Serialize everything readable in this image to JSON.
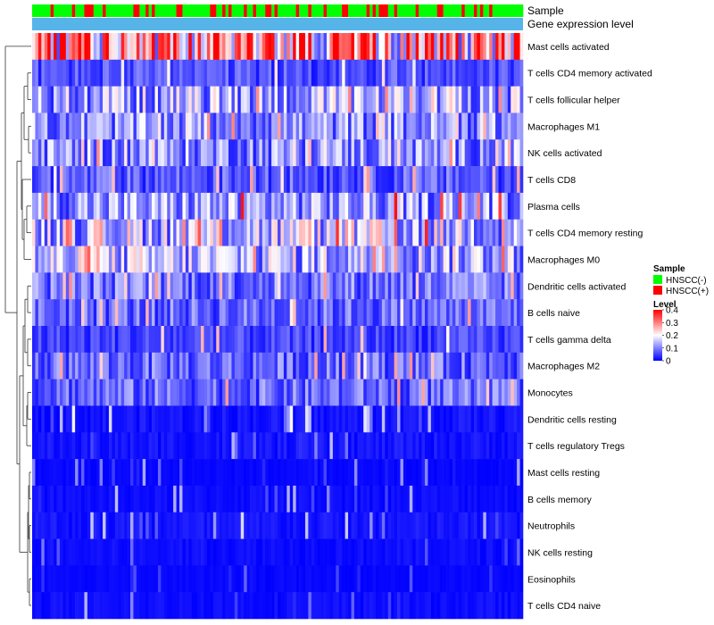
{
  "chart_data": {
    "type": "heatmap",
    "title": "",
    "n_samples": 160,
    "annotation_rows": [
      {
        "name": "sample-annotation",
        "label": "Sample"
      },
      {
        "name": "expression-annotation",
        "label": "Gene expression level"
      }
    ],
    "row_labels": [
      "Mast cells activated",
      "T cells CD4 memory activated",
      "T cells follicular helper",
      "Macrophages M1",
      "NK cells activated",
      "T cells CD8",
      "Plasma cells",
      "T cells CD4 memory resting",
      "Macrophages M0",
      "Dendritic cells activated",
      "B cells naive",
      "T cells gamma delta",
      "Macrophages M2",
      "Monocytes",
      "Dendritic cells resting",
      "T cells regulatory  Tregs",
      "Mast cells resting",
      "B cells memory",
      "Neutrophils",
      "NK cells resting",
      "Eosinophils",
      "T cells CD4 naive"
    ],
    "row_mean_levels": [
      0.28,
      0.06,
      0.13,
      0.11,
      0.11,
      0.07,
      0.12,
      0.15,
      0.14,
      0.09,
      0.08,
      0.05,
      0.08,
      0.08,
      0.03,
      0.03,
      0.01,
      0.02,
      0.03,
      0.02,
      0.01,
      0.02
    ],
    "row_max_levels": [
      0.4,
      0.25,
      0.3,
      0.3,
      0.3,
      0.28,
      0.4,
      0.38,
      0.38,
      0.3,
      0.3,
      0.28,
      0.3,
      0.3,
      0.2,
      0.15,
      0.15,
      0.15,
      0.18,
      0.1,
      0.08,
      0.15
    ],
    "sample_groups": [
      "HNSCC(-)",
      "HNSCC(+)"
    ],
    "sample_positive_fraction": 0.3,
    "legend": {
      "sample": {
        "title": "Sample",
        "entries": [
          {
            "label": "HNSCC(-)",
            "color": "#00ff00"
          },
          {
            "label": "HNSCC(+)",
            "color": "#ff0000"
          }
        ]
      },
      "level": {
        "title": "Level",
        "ticks": [
          "0.4",
          "0.3",
          "0.2",
          "0.1",
          "0"
        ],
        "tick_values": [
          0.4,
          0.3,
          0.2,
          0.1,
          0
        ],
        "range": [
          0,
          0.4
        ],
        "colors": [
          "#0000ff",
          "#ffffff",
          "#ff0000"
        ]
      }
    },
    "colors": {
      "negative": "#00ff00",
      "positive": "#ff0000",
      "expression": "#56b4e9",
      "low": "#0000ff",
      "mid": "#ffffff",
      "high": "#ff0000"
    }
  }
}
